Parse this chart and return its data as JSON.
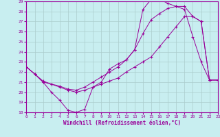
{
  "xlabel": "Windchill (Refroidissement éolien,°C)",
  "bg_color": "#c8eef0",
  "line_color": "#990099",
  "grid_color": "#aacccc",
  "xlim": [
    0,
    23
  ],
  "ylim": [
    18,
    29
  ],
  "xticks": [
    0,
    1,
    2,
    3,
    4,
    5,
    6,
    7,
    8,
    9,
    10,
    11,
    12,
    13,
    14,
    15,
    16,
    17,
    18,
    19,
    20,
    21,
    22,
    23
  ],
  "yticks": [
    18,
    19,
    20,
    21,
    22,
    23,
    24,
    25,
    26,
    27,
    28,
    29
  ],
  "line1_x": [
    0,
    1,
    2,
    3,
    4,
    5,
    6,
    7,
    8,
    9,
    10,
    11,
    12,
    13,
    14,
    15,
    16,
    17,
    18,
    19,
    20,
    21,
    22,
    23
  ],
  "line1_y": [
    22.5,
    21.8,
    21.0,
    20.0,
    19.2,
    18.2,
    18.0,
    18.3,
    20.5,
    21.0,
    22.3,
    22.8,
    23.2,
    24.2,
    28.2,
    29.2,
    29.2,
    28.8,
    28.5,
    28.2,
    25.5,
    23.0,
    21.2,
    21.2
  ],
  "line2_x": [
    0,
    1,
    2,
    3,
    4,
    5,
    6,
    7,
    8,
    9,
    10,
    11,
    12,
    13,
    14,
    15,
    16,
    17,
    18,
    19,
    20,
    21,
    22,
    23
  ],
  "line2_y": [
    22.5,
    21.8,
    21.1,
    20.8,
    20.6,
    20.3,
    20.2,
    20.5,
    21.0,
    21.5,
    22.0,
    22.5,
    23.2,
    24.2,
    25.8,
    27.2,
    27.8,
    28.3,
    28.5,
    28.5,
    27.5,
    27.0,
    21.2,
    21.2
  ],
  "line3_x": [
    0,
    1,
    2,
    3,
    4,
    5,
    6,
    7,
    8,
    9,
    10,
    11,
    12,
    13,
    14,
    15,
    16,
    17,
    18,
    19,
    20,
    21,
    22,
    23
  ],
  "line3_y": [
    22.5,
    21.8,
    21.0,
    20.8,
    20.5,
    20.2,
    20.0,
    20.2,
    20.5,
    20.8,
    21.1,
    21.4,
    22.0,
    22.5,
    23.0,
    23.5,
    24.5,
    25.5,
    26.5,
    27.5,
    27.5,
    27.0,
    21.2,
    21.2
  ]
}
